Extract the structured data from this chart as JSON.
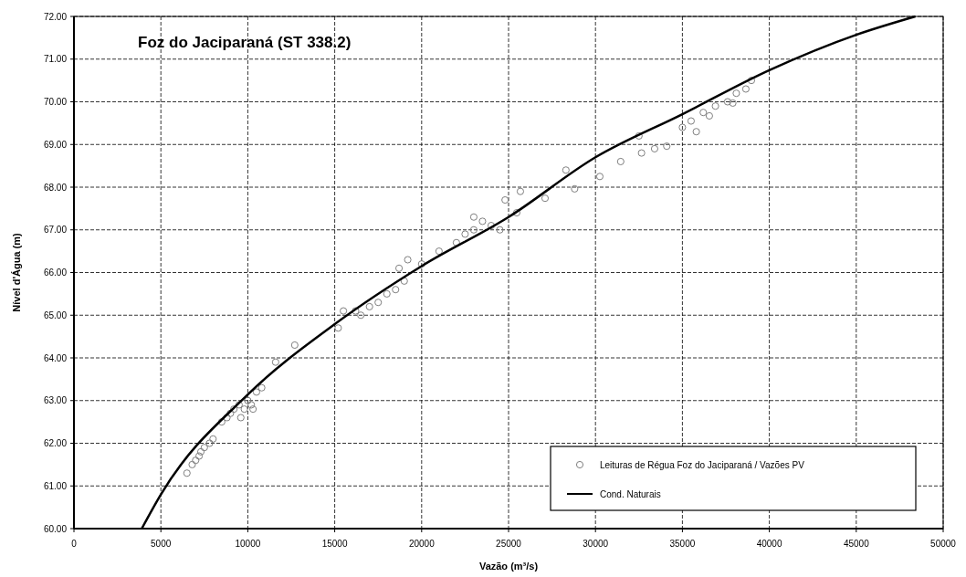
{
  "chart_data": {
    "type": "scatter",
    "title": "Foz do Jaciparaná (ST 338.2)",
    "xlabel": "Vazão (m³/s)",
    "ylabel": "Nível d'Água (m)",
    "xlim": [
      0,
      50000
    ],
    "ylim": [
      60,
      72
    ],
    "xticks": [
      0,
      5000,
      10000,
      15000,
      20000,
      25000,
      30000,
      35000,
      40000,
      45000,
      50000
    ],
    "yticks": [
      {
        "value": 60,
        "label": "60.00"
      },
      {
        "value": 61,
        "label": "61.00"
      },
      {
        "value": 62,
        "label": "62.00"
      },
      {
        "value": 63,
        "label": "63.00"
      },
      {
        "value": 64,
        "label": "64.00"
      },
      {
        "value": 65,
        "label": "65.00"
      },
      {
        "value": 66,
        "label": "66.00"
      },
      {
        "value": 67,
        "label": "67.00"
      },
      {
        "value": 68,
        "label": "68.00"
      },
      {
        "value": 69,
        "label": "69.00"
      },
      {
        "value": 70,
        "label": "70.00"
      },
      {
        "value": 71,
        "label": "71.00"
      },
      {
        "value": 72,
        "label": "72.00"
      }
    ],
    "grid": true,
    "legend": "bottom right",
    "series": [
      {
        "name": "Leituras de Régua Foz do Jaciparaná / Vazões PV",
        "marker": "circle",
        "color": "#808080",
        "x": [
          6500,
          6800,
          7000,
          7200,
          7300,
          7500,
          7800,
          8000,
          8500,
          8800,
          9000,
          9200,
          9500,
          9600,
          9800,
          10000,
          10200,
          10300,
          10500,
          10800,
          11600,
          12700,
          15200,
          15500,
          16200,
          16500,
          17000,
          17500,
          18000,
          18500,
          18700,
          19000,
          19200,
          20000,
          21000,
          22000,
          22500,
          23000,
          23000,
          23500,
          24000,
          24500,
          24800,
          25470,
          25680,
          27100,
          28300,
          28800,
          30250,
          31450,
          32500,
          32650,
          33400,
          34100,
          35000,
          35500,
          35800,
          36200,
          36550,
          36900,
          37600,
          37900,
          38100,
          38650,
          38970
        ],
        "values": [
          61.3,
          61.5,
          61.6,
          61.7,
          61.8,
          61.9,
          62.0,
          62.1,
          62.5,
          62.6,
          62.7,
          62.8,
          62.9,
          62.6,
          62.8,
          63.0,
          62.9,
          62.8,
          63.2,
          63.3,
          63.9,
          64.3,
          64.7,
          65.1,
          65.1,
          65.0,
          65.2,
          65.3,
          65.5,
          65.6,
          66.1,
          65.8,
          66.3,
          66.2,
          66.5,
          66.7,
          66.9,
          67.0,
          67.3,
          67.2,
          67.1,
          67.0,
          67.7,
          67.4,
          67.9,
          67.74,
          68.4,
          67.96,
          68.25,
          68.6,
          69.2,
          68.8,
          68.9,
          68.96,
          69.4,
          69.55,
          69.3,
          69.75,
          69.67,
          69.9,
          70.0,
          69.97,
          70.2,
          70.3,
          70.5
        ]
      },
      {
        "name": "Cond. Naturais",
        "type": "line",
        "marker": "none",
        "color": "#000000",
        "x": [
          3900,
          5000,
          10000,
          15000,
          20000,
          25000,
          30000,
          35000,
          40000,
          45000,
          48400
        ],
        "values": [
          60.0,
          60.8,
          63.14,
          64.79,
          66.15,
          67.3,
          68.7,
          69.71,
          70.74,
          71.57,
          72.0
        ]
      }
    ]
  }
}
